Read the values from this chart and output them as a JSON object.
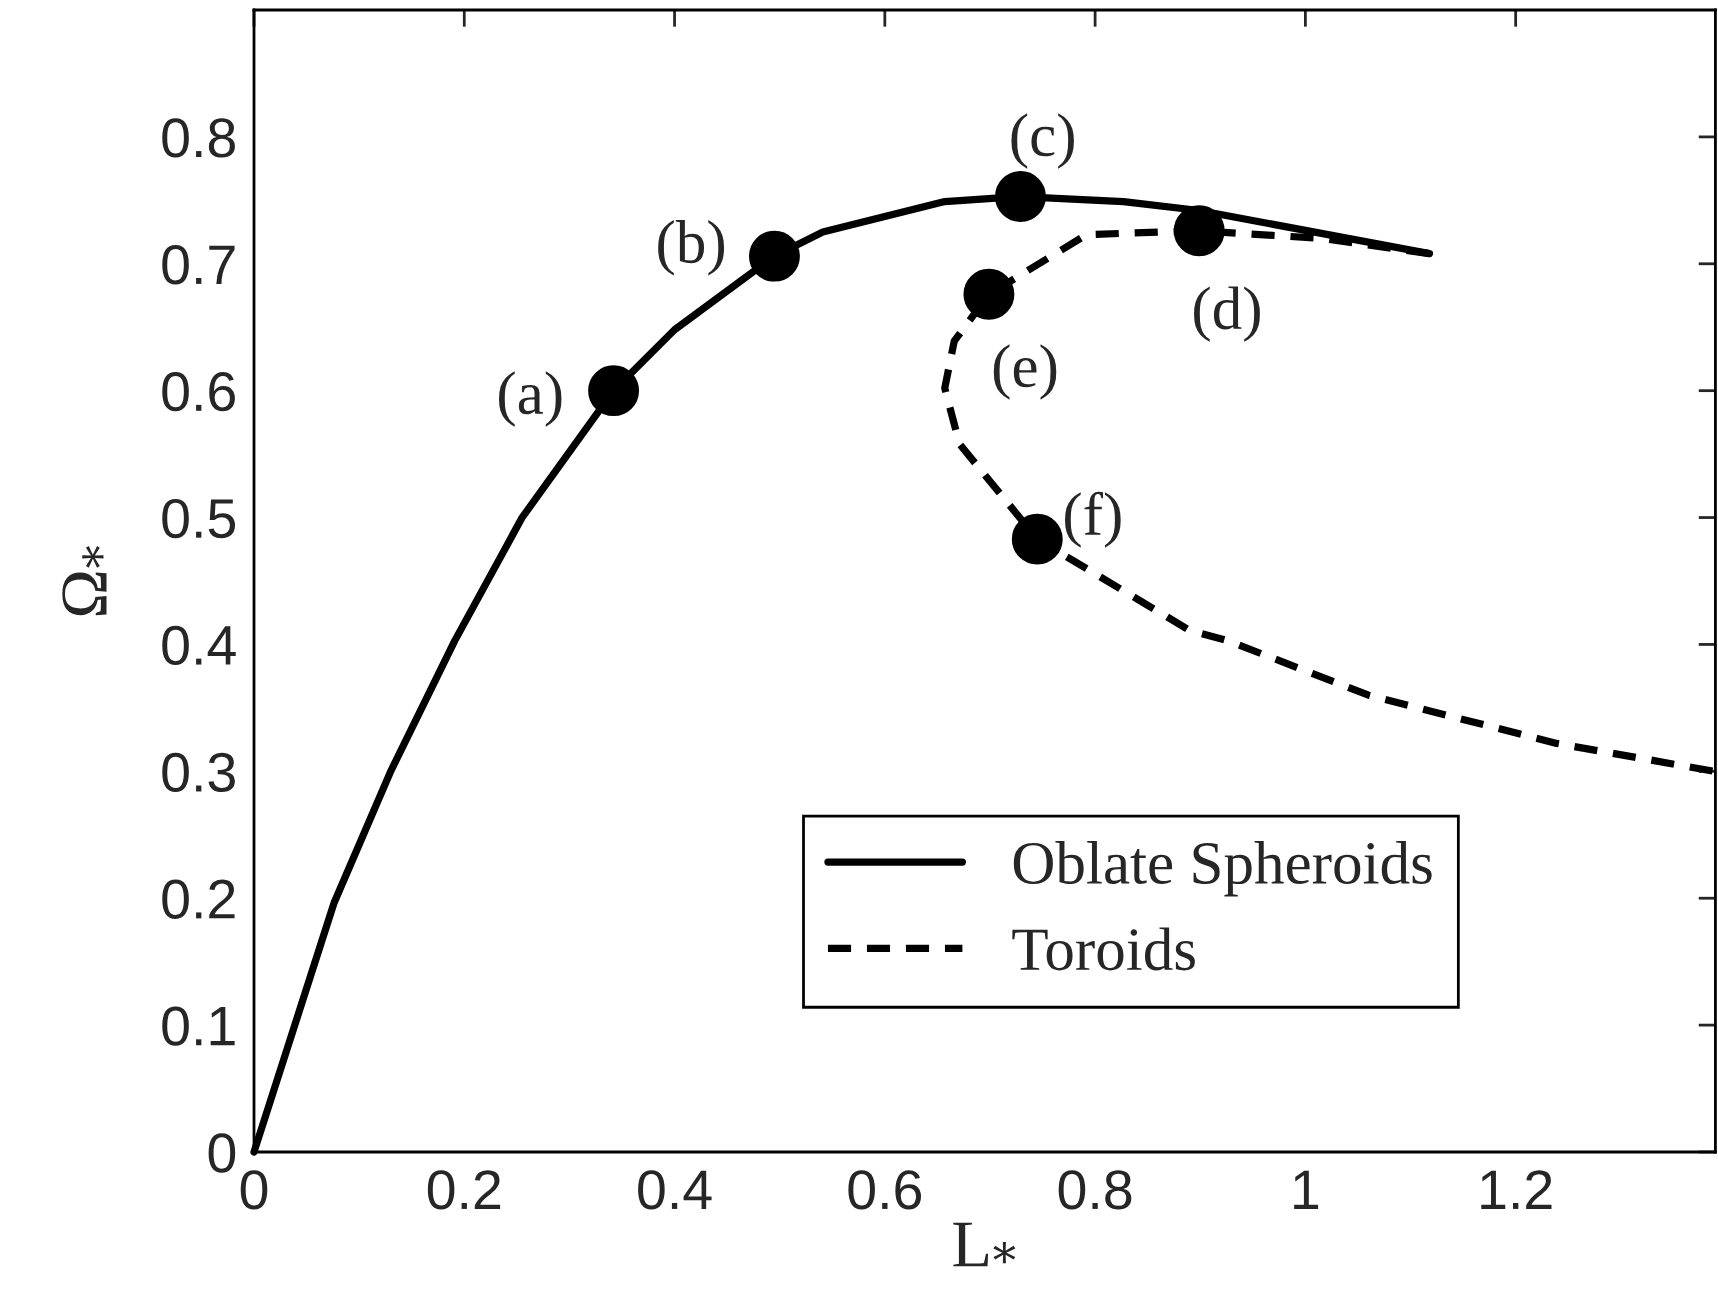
{
  "chart_data": {
    "type": "line",
    "xlabel": "L$_{*}$",
    "ylabel": "Ω$_{*}$",
    "xlim": [
      0,
      1.39
    ],
    "ylim": [
      0,
      0.9
    ],
    "xticks": [
      0,
      0.2,
      0.4,
      0.6,
      0.8,
      1,
      1.2
    ],
    "yticks": [
      0,
      0.1,
      0.2,
      0.3,
      0.4,
      0.5,
      0.6,
      0.7,
      0.8
    ],
    "grid": false,
    "legend": "bottom right",
    "series": [
      {
        "name": "Oblate Spheroids",
        "color": "#000000",
        "line_style": "solid",
        "x": [
          0,
          0.076,
          0.13,
          0.191,
          0.255,
          0.342,
          0.4,
          0.495,
          0.541,
          0.657,
          0.729,
          0.827,
          0.899,
          1.118
        ],
        "values": [
          0,
          0.196,
          0.3,
          0.403,
          0.5,
          0.6,
          0.648,
          0.706,
          0.725,
          0.749,
          0.753,
          0.749,
          0.742,
          0.708
        ]
      },
      {
        "name": "Toroids",
        "color": "#000000",
        "line_style": "dashed",
        "x": [
          1.118,
          1.015,
          0.899,
          0.792,
          0.699,
          0.666,
          0.657,
          0.671,
          0.745,
          0.89,
          0.926,
          1.06,
          1.239,
          1.389
        ],
        "values": [
          0.708,
          0.72,
          0.726,
          0.723,
          0.676,
          0.639,
          0.602,
          0.558,
          0.483,
          0.411,
          0.403,
          0.36,
          0.322,
          0.3
        ]
      },
      {
        "type": "scatter",
        "color": "#000000",
        "marker": "circle",
        "x": [
          0.342,
          0.495,
          0.729,
          0.899,
          0.699,
          0.745
        ],
        "values": [
          0.6,
          0.706,
          0.753,
          0.726,
          0.676,
          0.483
        ]
      }
    ],
    "annotations": [
      {
        "text": "(a)",
        "x": 0.342,
        "y": 0.6
      },
      {
        "text": "(b)",
        "x": 0.495,
        "y": 0.706
      },
      {
        "text": "(c)",
        "x": 0.729,
        "y": 0.753
      },
      {
        "text": "(d)",
        "x": 0.899,
        "y": 0.726
      },
      {
        "text": "(e)",
        "x": 0.699,
        "y": 0.676
      },
      {
        "text": "(f)",
        "x": 0.745,
        "y": 0.483
      }
    ]
  }
}
